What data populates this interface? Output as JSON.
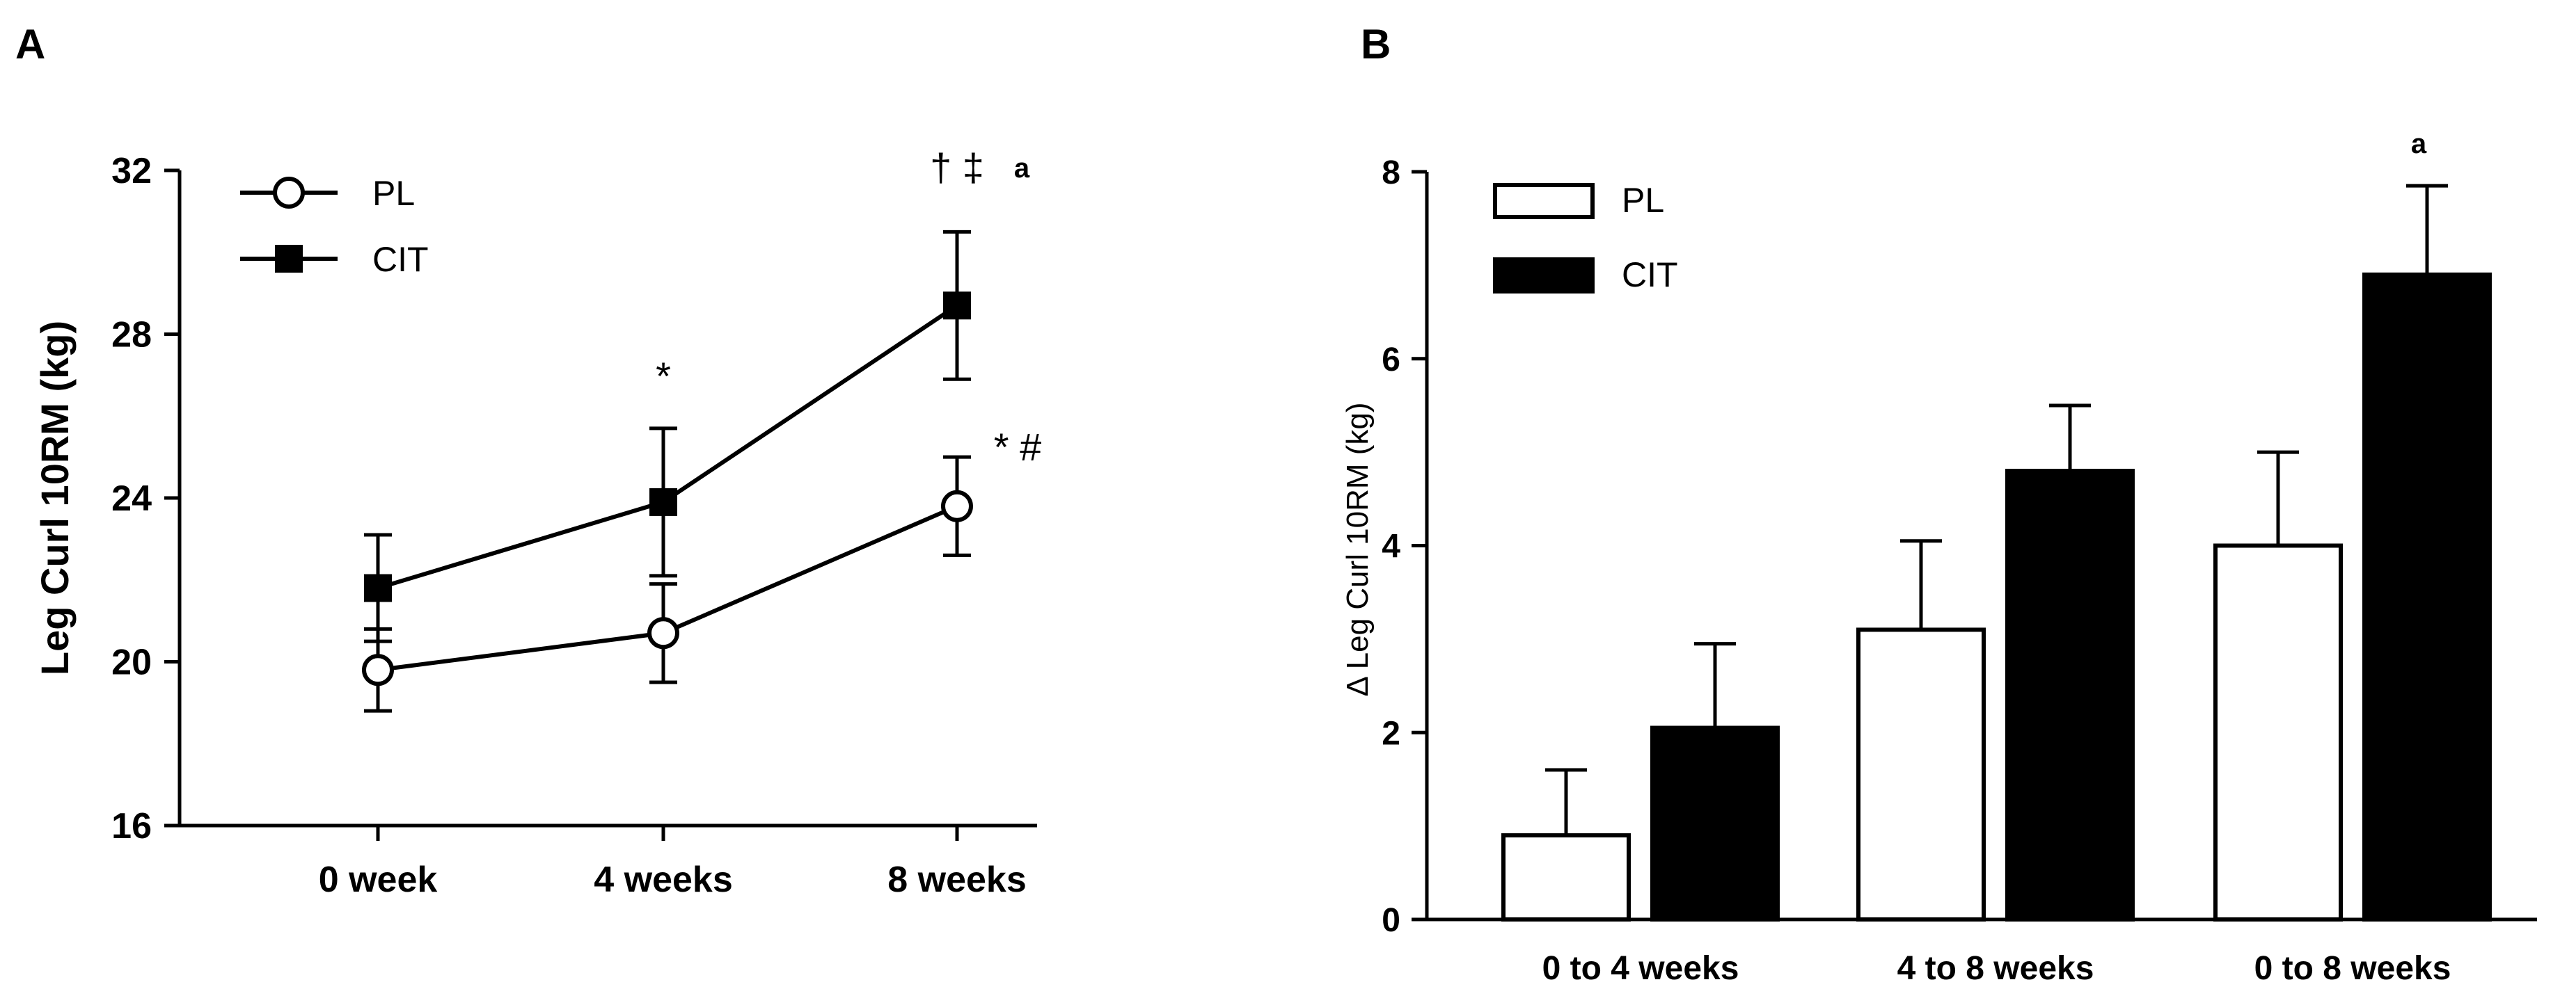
{
  "chart_data": [
    {
      "panel": "A",
      "type": "line",
      "ylabel": "Leg Curl 10RM (kg)",
      "xlabel": "",
      "ylim": [
        16,
        32
      ],
      "yticks": [
        "16",
        "20",
        "24",
        "28",
        "32"
      ],
      "categories": [
        "0 week",
        "4 weeks",
        "8 weeks"
      ],
      "series": [
        {
          "name": "PL",
          "marker": "open-circle",
          "values": [
            19.8,
            20.7,
            23.8
          ],
          "errors": [
            1.0,
            1.2,
            1.2
          ]
        },
        {
          "name": "CIT",
          "marker": "filled-square",
          "values": [
            21.8,
            23.9,
            28.7
          ],
          "errors": [
            1.3,
            1.8,
            1.8
          ]
        }
      ],
      "annotations": [
        {
          "text": "*",
          "category": "4 weeks",
          "series": "CIT"
        },
        {
          "text": "† ‡",
          "category": "8 weeks",
          "series": "CIT"
        },
        {
          "text": "a",
          "category": "8 weeks",
          "series": "CIT"
        },
        {
          "text": "* #",
          "category": "8 weeks",
          "series": "PL"
        }
      ]
    },
    {
      "panel": "B",
      "type": "bar",
      "ylabel": "Δ Leg Curl 10RM (kg)",
      "xlabel": "",
      "ylim": [
        0,
        8
      ],
      "yticks": [
        "0",
        "2",
        "4",
        "6",
        "8"
      ],
      "categories": [
        "0 to 4 weeks",
        "4 to 8 weeks",
        "0 to 8 weeks"
      ],
      "series": [
        {
          "name": "PL",
          "fill": "#ffffff",
          "values": [
            0.9,
            3.1,
            4.0
          ],
          "errors": [
            0.7,
            0.95,
            1.0
          ]
        },
        {
          "name": "CIT",
          "fill": "#000000",
          "values": [
            2.05,
            4.8,
            6.9
          ],
          "errors": [
            0.9,
            0.7,
            0.95
          ]
        }
      ],
      "annotations": [
        {
          "text": "a",
          "category": "0 to 8 weeks",
          "series": "CIT"
        }
      ]
    }
  ]
}
